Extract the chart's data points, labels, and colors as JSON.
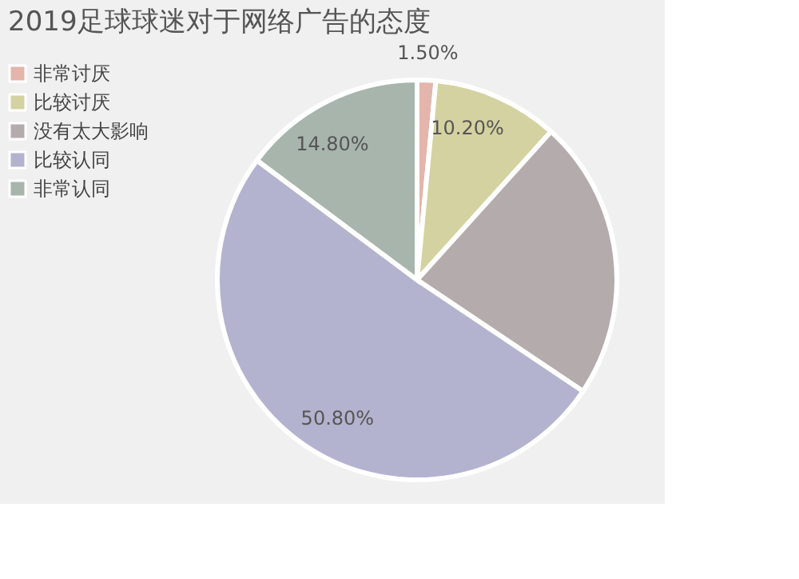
{
  "chart_data": {
    "type": "pie",
    "title": "2019足球球迷对于网络广告的态度",
    "categories": [
      "非常讨厌",
      "比较讨厌",
      "没有太大影响",
      "比较认同",
      "非常认同"
    ],
    "values": [
      1.5,
      10.2,
      22.7,
      50.8,
      14.8
    ],
    "colors": [
      "#e3b5ab",
      "#d4d2a0",
      "#b4abac",
      "#b3b3cf",
      "#a7b5ac"
    ],
    "value_labels": [
      "1.50%",
      "10.20%",
      null,
      "50.80%",
      "14.80%"
    ],
    "legend": "left"
  }
}
